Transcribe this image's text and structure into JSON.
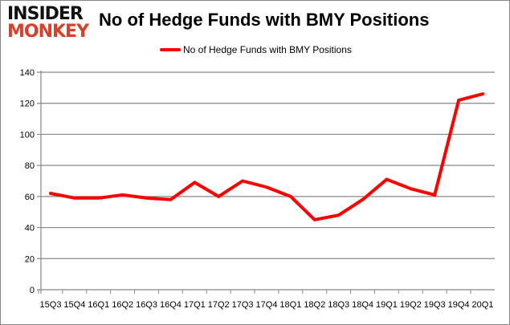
{
  "logo": {
    "line1": "INSIDER",
    "line2": "MONKEY"
  },
  "chart_data": {
    "type": "line",
    "title": "No of Hedge Funds with BMY Positions",
    "xlabel": "",
    "ylabel": "",
    "categories": [
      "15Q3",
      "15Q4",
      "16Q1",
      "16Q2",
      "16Q3",
      "16Q4",
      "17Q1",
      "17Q2",
      "17Q3",
      "17Q4",
      "18Q1",
      "18Q2",
      "18Q3",
      "18Q4",
      "19Q1",
      "19Q2",
      "19Q3",
      "19Q4",
      "20Q1"
    ],
    "series": [
      {
        "name": "No of Hedge Funds with BMY Positions",
        "color": "#ff0000",
        "values": [
          62,
          59,
          59,
          61,
          59,
          58,
          69,
          60,
          70,
          66,
          60,
          45,
          48,
          58,
          71,
          65,
          61,
          122,
          126
        ]
      }
    ],
    "ylim": [
      0,
      140
    ],
    "yticks": [
      0,
      20,
      40,
      60,
      80,
      100,
      120,
      140
    ],
    "grid": true,
    "legend": "top-center"
  }
}
